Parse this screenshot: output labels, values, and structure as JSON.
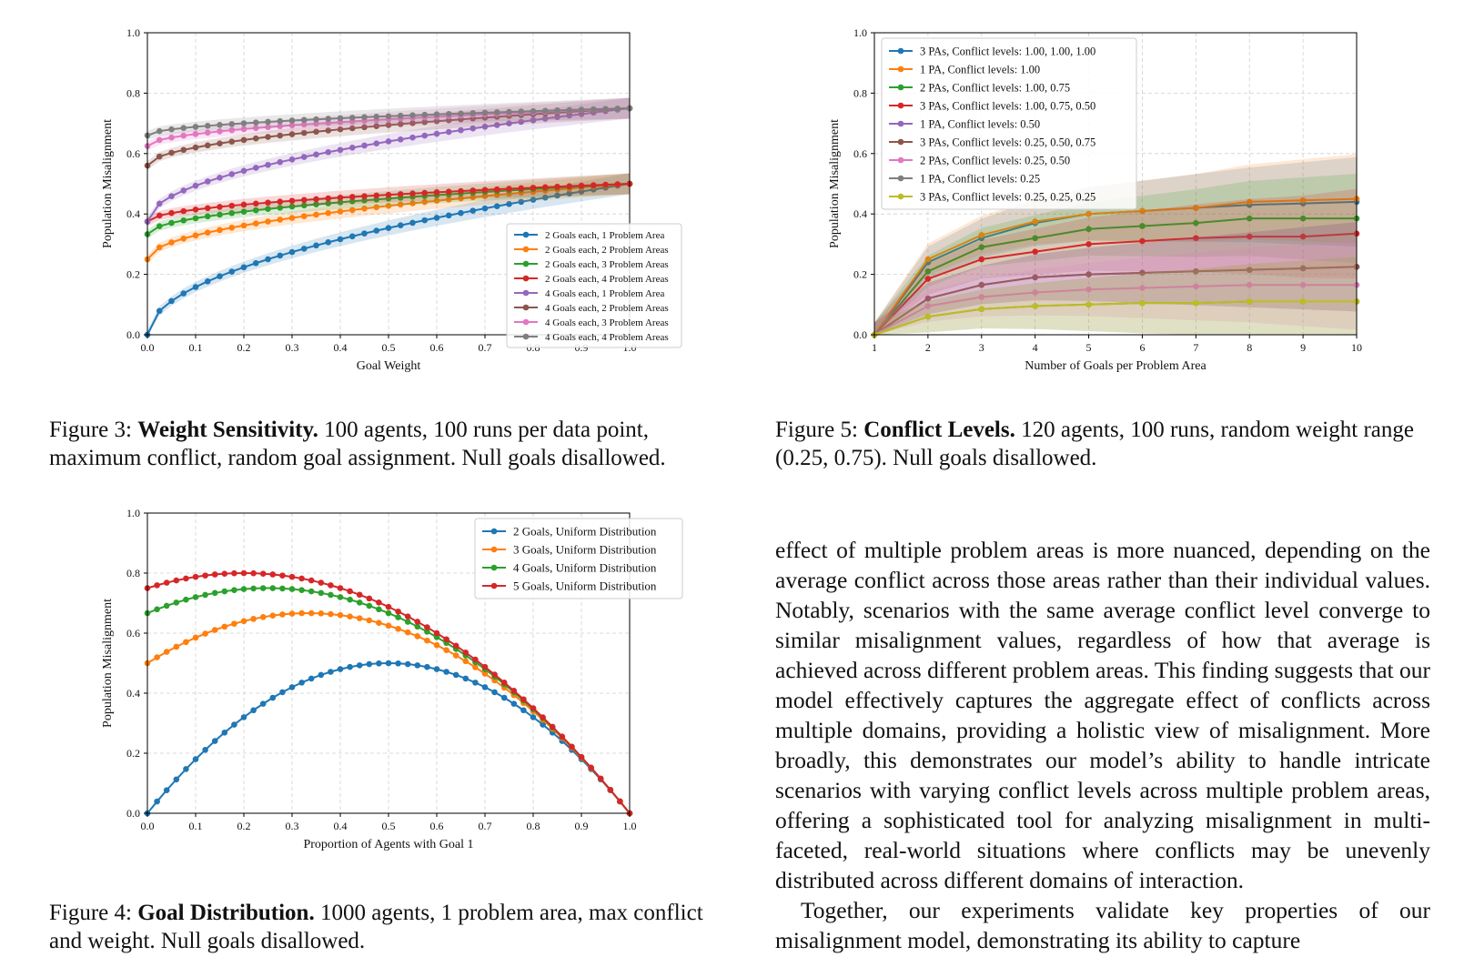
{
  "chart_data": [
    {
      "id": "fig3",
      "type": "line",
      "xlabel": "Goal Weight",
      "ylabel": "Population Misalignment",
      "xlim": [
        0,
        1
      ],
      "ylim": [
        0,
        1
      ],
      "xticks": [
        "0.0",
        "0.1",
        "0.2",
        "0.3",
        "0.4",
        "0.5",
        "0.6",
        "0.7",
        "0.8",
        "0.9",
        "1.0"
      ],
      "yticks": [
        "0.0",
        "0.2",
        "0.4",
        "0.6",
        "0.8",
        "1.0"
      ],
      "grid": true,
      "legend_position": "lower-right",
      "band": true,
      "n_points": 41,
      "series": [
        {
          "name": "2 Goals each, 1 Problem Area",
          "color": "#1f77b4",
          "start": 0.0,
          "end": 0.5,
          "shape": "sqrt"
        },
        {
          "name": "2 Goals each, 2 Problem Areas",
          "color": "#ff7f0e",
          "start": 0.25,
          "end": 0.5,
          "shape": "sqrt"
        },
        {
          "name": "2 Goals each, 3 Problem Areas",
          "color": "#2ca02c",
          "start": 0.333,
          "end": 0.5,
          "shape": "sqrt"
        },
        {
          "name": "2 Goals each, 4 Problem Areas",
          "color": "#d62728",
          "start": 0.375,
          "end": 0.5,
          "shape": "sqrt"
        },
        {
          "name": "4 Goals each, 1 Problem Area",
          "color": "#9467bd",
          "start": 0.375,
          "end": 0.75,
          "shape": "sqrt"
        },
        {
          "name": "4 Goals each, 2 Problem Areas",
          "color": "#8c564b",
          "start": 0.56,
          "end": 0.75,
          "shape": "sqrt"
        },
        {
          "name": "4 Goals each, 3 Problem Areas",
          "color": "#e377c2",
          "start": 0.625,
          "end": 0.75,
          "shape": "sqrt"
        },
        {
          "name": "4 Goals each, 4 Problem Areas",
          "color": "#7f7f7f",
          "start": 0.66,
          "end": 0.75,
          "shape": "sqrt"
        }
      ]
    },
    {
      "id": "fig5",
      "type": "line",
      "xlabel": "Number of Goals per Problem Area",
      "ylabel": "Population Misalignment",
      "xlim": [
        1,
        10
      ],
      "ylim": [
        0,
        1
      ],
      "xticks": [
        "1",
        "2",
        "3",
        "4",
        "5",
        "6",
        "7",
        "8",
        "9",
        "10"
      ],
      "yticks": [
        "0.0",
        "0.2",
        "0.4",
        "0.6",
        "0.8",
        "1.0"
      ],
      "grid": true,
      "legend_position": "upper-left",
      "band": true,
      "x": [
        1,
        2,
        3,
        4,
        5,
        6,
        7,
        8,
        9,
        10
      ],
      "series": [
        {
          "name": "3 PAs, Conflict levels: 1.00, 1.00, 1.00",
          "color": "#1f77b4",
          "values": [
            0.0,
            0.24,
            0.32,
            0.37,
            0.4,
            0.41,
            0.42,
            0.43,
            0.435,
            0.44
          ]
        },
        {
          "name": "1 PA, Conflict levels: 1.00",
          "color": "#ff7f0e",
          "values": [
            0.0,
            0.25,
            0.33,
            0.375,
            0.4,
            0.41,
            0.42,
            0.44,
            0.445,
            0.45
          ]
        },
        {
          "name": "2 PAs, Conflict levels: 1.00, 0.75",
          "color": "#2ca02c",
          "values": [
            0.0,
            0.21,
            0.29,
            0.32,
            0.35,
            0.36,
            0.37,
            0.385,
            0.385,
            0.385
          ]
        },
        {
          "name": "3 PAs, Conflict levels: 1.00, 0.75, 0.50",
          "color": "#d62728",
          "values": [
            0.0,
            0.185,
            0.25,
            0.275,
            0.3,
            0.31,
            0.32,
            0.325,
            0.325,
            0.335
          ]
        },
        {
          "name": "1 PA, Conflict levels: 0.50",
          "color": "#9467bd",
          "values": [
            0.0,
            0.12,
            0.165,
            0.19,
            0.2,
            0.205,
            0.21,
            0.215,
            0.22,
            0.225
          ]
        },
        {
          "name": "3 PAs, Conflict levels: 0.25, 0.50, 0.75",
          "color": "#8c564b",
          "values": [
            0.0,
            0.12,
            0.165,
            0.19,
            0.2,
            0.205,
            0.21,
            0.215,
            0.22,
            0.225
          ]
        },
        {
          "name": "2 PAs, Conflict levels: 0.25, 0.50",
          "color": "#e377c2",
          "values": [
            0.0,
            0.095,
            0.125,
            0.14,
            0.15,
            0.155,
            0.16,
            0.165,
            0.165,
            0.165
          ]
        },
        {
          "name": "1 PA, Conflict levels: 0.25",
          "color": "#7f7f7f",
          "values": [
            0.0,
            0.06,
            0.085,
            0.095,
            0.1,
            0.105,
            0.105,
            0.11,
            0.11,
            0.11
          ]
        },
        {
          "name": "3 PAs, Conflict levels: 0.25, 0.25, 0.25",
          "color": "#bcbd22",
          "values": [
            0.0,
            0.06,
            0.085,
            0.095,
            0.1,
            0.105,
            0.105,
            0.11,
            0.11,
            0.11
          ]
        }
      ]
    },
    {
      "id": "fig4",
      "type": "line",
      "xlabel": "Proportion of Agents with Goal 1",
      "ylabel": "Population Misalignment",
      "xlim": [
        0,
        1
      ],
      "ylim": [
        0,
        1
      ],
      "xticks": [
        "0.0",
        "0.1",
        "0.2",
        "0.3",
        "0.4",
        "0.5",
        "0.6",
        "0.7",
        "0.8",
        "0.9",
        "1.0"
      ],
      "yticks": [
        "0.0",
        "0.2",
        "0.4",
        "0.6",
        "0.8",
        "1.0"
      ],
      "grid": true,
      "legend_position": "upper-right",
      "band": false,
      "n_points": 51,
      "series": [
        {
          "name": "2 Goals, Uniform Distribution",
          "color": "#1f77b4",
          "goals": 2
        },
        {
          "name": "3 Goals, Uniform Distribution",
          "color": "#ff7f0e",
          "goals": 3
        },
        {
          "name": "4 Goals, Uniform Distribution",
          "color": "#2ca02c",
          "goals": 4
        },
        {
          "name": "5 Goals, Uniform Distribution",
          "color": "#d62728",
          "goals": 5
        }
      ]
    }
  ],
  "captions": {
    "fig3": {
      "label": "Figure 3: ",
      "title": "Weight Sensitivity.",
      "text": " 100 agents, 100 runs per data point, maximum conflict, random goal assignment. Null goals disallowed."
    },
    "fig5": {
      "label": "Figure 5: ",
      "title": "Conflict Levels.",
      "text": " 120 agents, 100 runs, random weight range (0.25, 0.75). Null goals disallowed."
    },
    "fig4": {
      "label": "Figure 4: ",
      "title": "Goal Distribution.",
      "text": " 1000 agents, 1 problem area, max conflict and weight. Null goals disallowed."
    }
  },
  "body": {
    "paragraph1": "effect of multiple problem areas is more nuanced, depending on the average conflict across those areas rather than their individual values. Notably, scenarios with the same average conflict level converge to similar misalignment values, regardless of how that average is achieved across different problem areas. This finding suggests that our model effectively captures the aggregate effect of conflicts across multiple domains, providing a holistic view of misalignment. More broadly, this demonstrates our model’s ability to handle intricate scenarios with varying conflict levels across multiple problem areas, offering a sophisticated tool for analyzing misalignment in multi-faceted, real-world situations where conflicts may be unevenly distributed across different domains of interaction.",
    "paragraph2": "Together, our experiments validate key properties of our misalignment model, demonstrating its ability to capture"
  }
}
